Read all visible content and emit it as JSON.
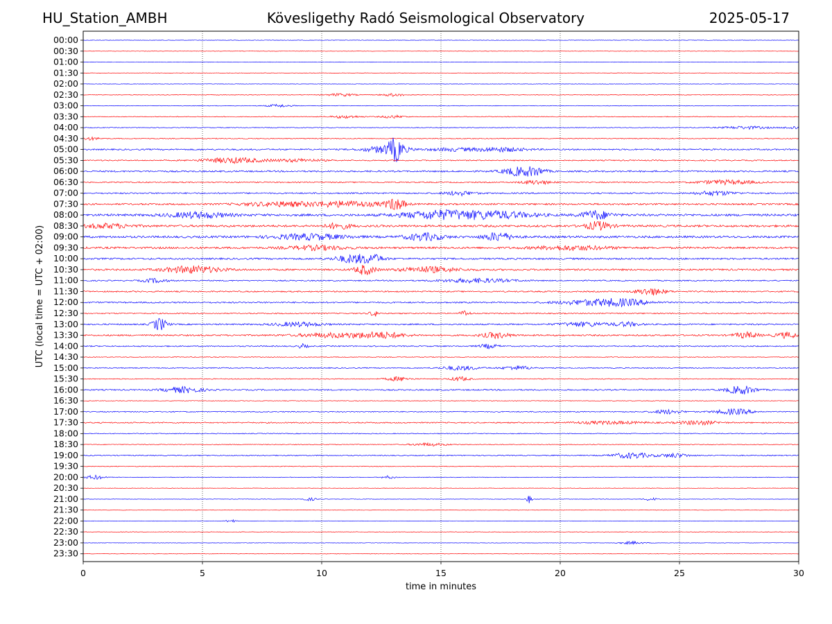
{
  "header": {
    "station": "HU_Station_AMBH",
    "title": "Kövesligethy Radó Seismological Observatory",
    "date": "2025-05-17"
  },
  "chart_data": {
    "type": "line",
    "title": "Kövesligethy Radó Seismological Observatory",
    "xlabel": "time in minutes",
    "ylabel": "UTC (local time = UTC + 02:00)",
    "xlim": [
      0,
      30
    ],
    "x_ticks": [
      "0",
      "5",
      "10",
      "15",
      "20",
      "25",
      "30"
    ],
    "grid": "vertical dotted lines at each x tick",
    "colors": {
      "even_rows": "#0000ff",
      "odd_rows": "#ff0000"
    },
    "rows": [
      {
        "label": "00:00",
        "noise": 0.3,
        "bursts": []
      },
      {
        "label": "00:30",
        "noise": 0.3,
        "bursts": []
      },
      {
        "label": "01:00",
        "noise": 0.3,
        "bursts": []
      },
      {
        "label": "01:30",
        "noise": 0.3,
        "bursts": []
      },
      {
        "label": "02:00",
        "noise": 0.3,
        "bursts": []
      },
      {
        "label": "02:30",
        "noise": 0.4,
        "bursts": [
          [
            10.8,
            0.6,
            2
          ],
          [
            13.0,
            0.5,
            2
          ]
        ]
      },
      {
        "label": "03:00",
        "noise": 0.4,
        "bursts": [
          [
            8.2,
            0.5,
            2
          ]
        ]
      },
      {
        "label": "03:30",
        "noise": 0.5,
        "bursts": [
          [
            11.0,
            0.6,
            2
          ],
          [
            13.0,
            0.5,
            2
          ]
        ]
      },
      {
        "label": "04:00",
        "noise": 0.5,
        "bursts": [
          [
            27.8,
            1.0,
            2
          ],
          [
            29.8,
            0.4,
            2
          ]
        ]
      },
      {
        "label": "04:30",
        "noise": 0.6,
        "bursts": [
          [
            0.3,
            0.4,
            2
          ]
        ]
      },
      {
        "label": "05:00",
        "noise": 1.0,
        "bursts": [
          [
            12.7,
            0.9,
            5
          ],
          [
            13.1,
            0.3,
            14
          ],
          [
            15.5,
            1.0,
            2
          ],
          [
            17.5,
            1.0,
            3
          ]
        ]
      },
      {
        "label": "05:30",
        "noise": 0.8,
        "bursts": [
          [
            6.3,
            1.2,
            4
          ],
          [
            9.0,
            1.0,
            2
          ]
        ]
      },
      {
        "label": "06:00",
        "noise": 1.1,
        "bursts": [
          [
            18.3,
            0.7,
            6
          ],
          [
            19.0,
            0.4,
            4
          ]
        ]
      },
      {
        "label": "06:30",
        "noise": 0.8,
        "bursts": [
          [
            19.0,
            0.6,
            3
          ],
          [
            27.0,
            1.2,
            3
          ]
        ]
      },
      {
        "label": "07:00",
        "noise": 1.0,
        "bursts": [
          [
            15.8,
            0.6,
            3
          ],
          [
            26.5,
            0.8,
            3
          ]
        ]
      },
      {
        "label": "07:30",
        "noise": 1.2,
        "bursts": [
          [
            8.2,
            1.5,
            3
          ],
          [
            11.0,
            1.5,
            4
          ],
          [
            13.1,
            0.4,
            8
          ]
        ]
      },
      {
        "label": "08:00",
        "noise": 1.6,
        "bursts": [
          [
            4.8,
            1.2,
            4
          ],
          [
            14.9,
            1.5,
            6
          ],
          [
            17.3,
            1.5,
            5
          ],
          [
            21.5,
            0.6,
            6
          ]
        ]
      },
      {
        "label": "08:30",
        "noise": 1.5,
        "bursts": [
          [
            10.7,
            0.5,
            4
          ],
          [
            21.6,
            0.5,
            6
          ],
          [
            1.0,
            1.0,
            3
          ]
        ]
      },
      {
        "label": "09:00",
        "noise": 1.5,
        "bursts": [
          [
            9.5,
            1.5,
            4
          ],
          [
            14.3,
            0.8,
            5
          ],
          [
            17.4,
            0.6,
            6
          ]
        ]
      },
      {
        "label": "09:30",
        "noise": 1.4,
        "bursts": [
          [
            9.8,
            1.2,
            3
          ],
          [
            20.5,
            1.5,
            3
          ]
        ]
      },
      {
        "label": "10:00",
        "noise": 1.2,
        "bursts": [
          [
            11.4,
            0.8,
            6
          ],
          [
            12.2,
            0.4,
            4
          ]
        ]
      },
      {
        "label": "10:30",
        "noise": 1.2,
        "bursts": [
          [
            4.6,
            1.2,
            5
          ],
          [
            11.8,
            0.4,
            7
          ],
          [
            14.5,
            1.2,
            4
          ]
        ]
      },
      {
        "label": "11:00",
        "noise": 0.8,
        "bursts": [
          [
            3.0,
            0.5,
            3
          ],
          [
            16.5,
            1.5,
            3
          ]
        ]
      },
      {
        "label": "11:30",
        "noise": 0.9,
        "bursts": [
          [
            23.8,
            0.6,
            5
          ]
        ]
      },
      {
        "label": "12:00",
        "noise": 1.0,
        "bursts": [
          [
            21.5,
            1.5,
            4
          ],
          [
            22.8,
            1.0,
            3
          ]
        ]
      },
      {
        "label": "12:30",
        "noise": 0.8,
        "bursts": [
          [
            12.2,
            0.2,
            4
          ],
          [
            16.0,
            0.2,
            4
          ]
        ]
      },
      {
        "label": "13:00",
        "noise": 1.0,
        "bursts": [
          [
            3.2,
            0.3,
            9
          ],
          [
            9.0,
            1.0,
            3
          ],
          [
            21.0,
            1.0,
            3
          ],
          [
            22.8,
            0.5,
            3
          ]
        ]
      },
      {
        "label": "13:30",
        "noise": 1.1,
        "bursts": [
          [
            10.5,
            1.5,
            3
          ],
          [
            12.5,
            1.0,
            4
          ],
          [
            17.3,
            0.6,
            4
          ],
          [
            29.5,
            0.5,
            4
          ],
          [
            27.8,
            0.5,
            4
          ]
        ]
      },
      {
        "label": "14:00",
        "noise": 0.8,
        "bursts": [
          [
            9.2,
            0.2,
            3
          ],
          [
            17.0,
            0.4,
            3
          ]
        ]
      },
      {
        "label": "14:30",
        "noise": 0.5,
        "bursts": []
      },
      {
        "label": "15:00",
        "noise": 0.7,
        "bursts": [
          [
            15.8,
            0.8,
            3
          ],
          [
            18.2,
            0.6,
            3
          ]
        ]
      },
      {
        "label": "15:30",
        "noise": 0.6,
        "bursts": [
          [
            13.2,
            0.5,
            3
          ],
          [
            15.8,
            0.4,
            3
          ]
        ]
      },
      {
        "label": "16:00",
        "noise": 0.9,
        "bursts": [
          [
            4.2,
            0.8,
            4
          ],
          [
            27.6,
            0.6,
            6
          ]
        ]
      },
      {
        "label": "16:30",
        "noise": 0.4,
        "bursts": []
      },
      {
        "label": "17:00",
        "noise": 0.7,
        "bursts": [
          [
            24.5,
            0.6,
            3
          ],
          [
            27.3,
            0.8,
            4
          ]
        ]
      },
      {
        "label": "17:30",
        "noise": 0.8,
        "bursts": [
          [
            25.8,
            0.8,
            3
          ],
          [
            22.0,
            1.5,
            2
          ]
        ]
      },
      {
        "label": "18:00",
        "noise": 0.6,
        "bursts": []
      },
      {
        "label": "18:30",
        "noise": 0.5,
        "bursts": [
          [
            14.5,
            0.8,
            2
          ]
        ]
      },
      {
        "label": "19:00",
        "noise": 0.7,
        "bursts": [
          [
            23.0,
            0.8,
            4
          ],
          [
            24.8,
            0.6,
            3
          ]
        ]
      },
      {
        "label": "19:30",
        "noise": 0.5,
        "bursts": []
      },
      {
        "label": "20:00",
        "noise": 0.4,
        "bursts": [
          [
            0.5,
            0.4,
            3
          ],
          [
            12.8,
            0.3,
            2
          ]
        ]
      },
      {
        "label": "20:30",
        "noise": 0.3,
        "bursts": []
      },
      {
        "label": "21:00",
        "noise": 0.3,
        "bursts": [
          [
            18.7,
            0.1,
            6
          ],
          [
            9.5,
            0.3,
            2
          ],
          [
            23.8,
            0.3,
            2
          ]
        ]
      },
      {
        "label": "21:30",
        "noise": 0.3,
        "bursts": []
      },
      {
        "label": "22:00",
        "noise": 0.3,
        "bursts": [
          [
            6.2,
            0.2,
            2
          ]
        ]
      },
      {
        "label": "22:30",
        "noise": 0.3,
        "bursts": []
      },
      {
        "label": "23:00",
        "noise": 0.3,
        "bursts": [
          [
            23.0,
            0.5,
            2
          ]
        ]
      },
      {
        "label": "23:30",
        "noise": 0.3,
        "bursts": []
      }
    ]
  }
}
